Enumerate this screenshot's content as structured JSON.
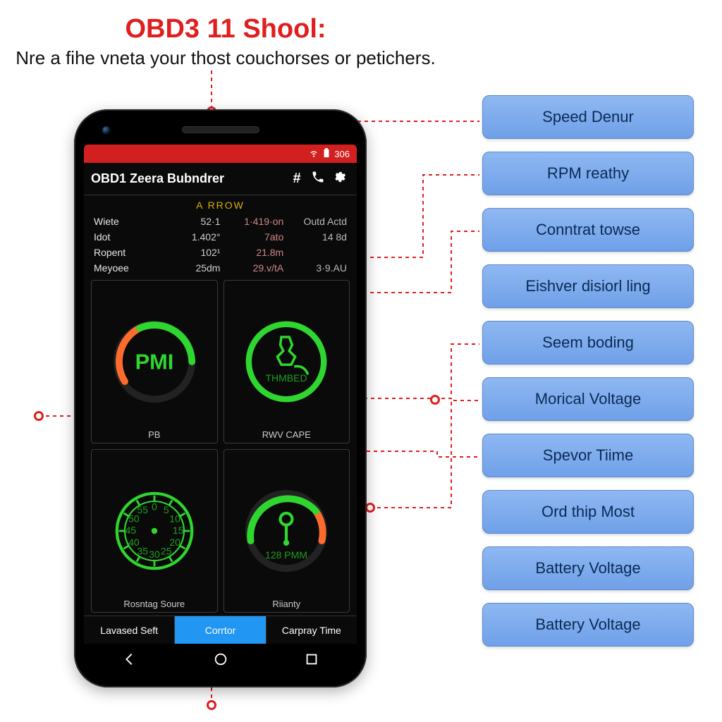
{
  "title": {
    "main": "OBD3 11 Shool:",
    "sub": "Nre a fihe vneta your thost couchorses or petichers.",
    "main_color": "#e01e1e",
    "sub_color": "#111111"
  },
  "status_bar": {
    "bg_color": "#d21f1f",
    "battery_text": "306"
  },
  "app_bar": {
    "title": "OBD1 Zeera Bubndrer"
  },
  "section_label": "A RROW",
  "data_rows": [
    {
      "label": "Wiete",
      "c1": "52·1",
      "c2": "1·419·on",
      "c3": "Outd Actd"
    },
    {
      "label": "Idot",
      "c1": "1.402°",
      "c2": "7ato",
      "c3": "14 8d"
    },
    {
      "label": "Ropent",
      "c1": "102¹",
      "c2": "21.8m",
      "c3": ""
    },
    {
      "label": "Meyoee",
      "c1": "25dm",
      "c2": "29.v/tA",
      "c3": "3·9.AU"
    }
  ],
  "gauges": [
    {
      "center": "PMI",
      "caption": "PB",
      "sublabel": "",
      "arc_start": "#ff6b2d",
      "arc_end": "#2fd62f",
      "type": "arc"
    },
    {
      "center": "",
      "caption": "RWV CAPE",
      "sublabel": "THMBED",
      "arc_start": "#2fd62f",
      "arc_end": "#2fd62f",
      "type": "icon"
    },
    {
      "center": "",
      "caption": "Rosntag Soure",
      "sublabel": "",
      "arc_start": "#2fd62f",
      "arc_end": "#2fd62f",
      "type": "dial"
    },
    {
      "center": "",
      "caption": "Riianty",
      "sublabel": "128 PMM",
      "arc_start": "#ff6b2d",
      "arc_end": "#2fd62f",
      "type": "arc-icon"
    }
  ],
  "tabs": [
    {
      "label": "Lavased Seft",
      "active": false
    },
    {
      "label": "Corrtor",
      "active": true
    },
    {
      "label": "Carpray Time",
      "active": false
    }
  ],
  "callouts": [
    "Speed Denur",
    "RPM reathy",
    "Conntrat towse",
    "Eishver disiorl ling",
    "Seem boding",
    "Morical Voltage",
    "Spevor Tiime",
    "Ord thip Most",
    "Battery Voltage",
    "Battery Voltage"
  ],
  "colors": {
    "callout_bg_top": "#8fb8f2",
    "callout_bg_bot": "#6fa0e8",
    "callout_text": "#0a2a55",
    "gauge_green": "#2fd62f",
    "gauge_orange": "#ff6b2d",
    "connector": "#e01e1e"
  }
}
